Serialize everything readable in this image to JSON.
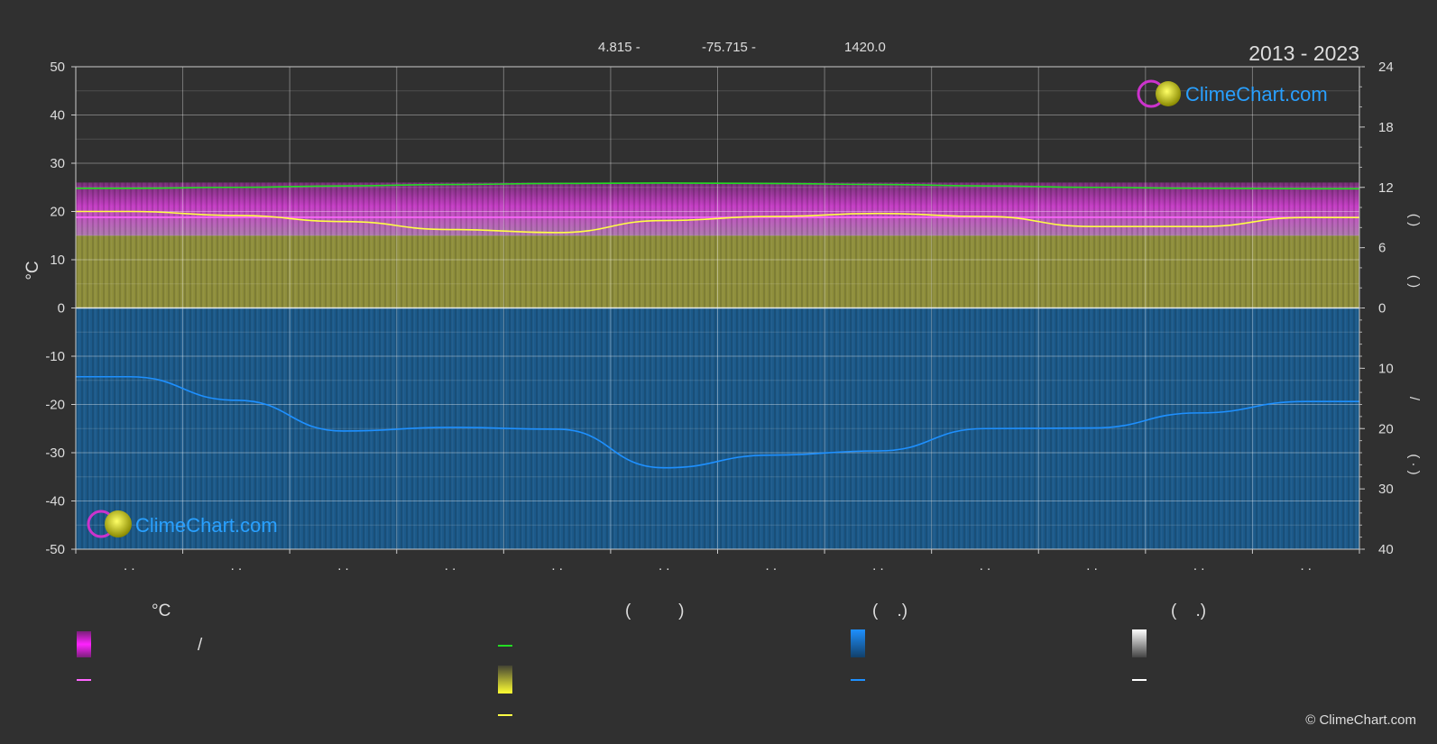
{
  "header": {
    "lat": "4.815 -",
    "lon": "-75.715 -",
    "elev": "1420.0",
    "years": "2013 - 2023"
  },
  "watermark": {
    "logo_text": "ClimeChart.com",
    "copyright": "© ClimeChart.com"
  },
  "axes": {
    "y_left_label": "°C",
    "y_right_label_upper": "(   )",
    "y_right_label_upper2": "(   )",
    "y_right_label_lower": "/",
    "y_right_label_lower2": "(  ·  )",
    "x_tick_labels": [
      ". .",
      ". .",
      ". .",
      ". .",
      ". .",
      ". .",
      ". .",
      ". .",
      ". .",
      ". .",
      ". .",
      ". ."
    ]
  },
  "legend": {
    "col1_header": "°C",
    "col1_row1_text": "/",
    "col2_header": "(          )",
    "col3_header": "(    .)",
    "col4_header": "(    .)"
  },
  "colors": {
    "background": "#303030",
    "temp_max_line": "#22dd22",
    "temp_mean_line": "#ff66ff",
    "sunshine_line": "#ffff44",
    "precip_line": "#1e90ff",
    "magenta_band": "#d23cd2",
    "olive_fill": "#8f8f3c",
    "blue_fill": "#1c5a8a"
  },
  "chart_data": {
    "type": "line",
    "x": [
      0,
      1,
      2,
      3,
      4,
      5,
      6,
      7,
      8,
      9,
      10,
      11
    ],
    "x_note": "",
    "ylim_left": [
      -50,
      50
    ],
    "y_right_upper_ticks": [
      0,
      6,
      12,
      18,
      24
    ],
    "y_right_lower_ticks": [
      0,
      10,
      20,
      30,
      40
    ],
    "grid": true,
    "series": [
      {
        "name": "",
        "axis": "left",
        "color": "#22dd22",
        "values": [
          24.8,
          25.0,
          25.3,
          25.6,
          25.8,
          25.9,
          25.8,
          25.6,
          25.3,
          25.0,
          24.8,
          24.7
        ]
      },
      {
        "name": "",
        "axis": "left",
        "color": "#ff66ff",
        "values": [
          18.8,
          18.8,
          18.8,
          18.8,
          18.8,
          18.8,
          18.8,
          18.8,
          18.8,
          18.8,
          18.8,
          18.8
        ]
      },
      {
        "name": "",
        "axis": "right_upper",
        "color": "#ffff44",
        "values": [
          9.6,
          9.2,
          8.6,
          7.8,
          7.5,
          8.7,
          9.1,
          9.4,
          9.1,
          8.1,
          8.1,
          9.0
        ]
      },
      {
        "name": "",
        "axis": "right_lower",
        "color": "#1e90ff",
        "values": [
          11.4,
          15.3,
          20.4,
          19.8,
          20.1,
          26.5,
          24.4,
          23.7,
          20.0,
          19.9,
          17.4,
          15.5
        ]
      }
    ],
    "bands": {
      "magenta_range_left": [
        15.0,
        26.0
      ],
      "olive_top_left": 15.0,
      "blue_bottom_left": -50
    }
  }
}
